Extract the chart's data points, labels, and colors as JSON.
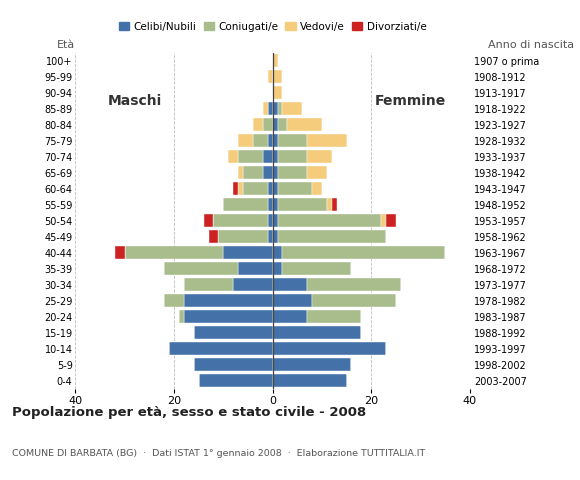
{
  "age_groups": [
    "0-4",
    "5-9",
    "10-14",
    "15-19",
    "20-24",
    "25-29",
    "30-34",
    "35-39",
    "40-44",
    "45-49",
    "50-54",
    "55-59",
    "60-64",
    "65-69",
    "70-74",
    "75-79",
    "80-84",
    "85-89",
    "90-94",
    "95-99",
    "100+"
  ],
  "birth_years": [
    "2003-2007",
    "1998-2002",
    "1993-1997",
    "1988-1992",
    "1983-1987",
    "1978-1982",
    "1973-1977",
    "1968-1972",
    "1963-1967",
    "1958-1962",
    "1953-1957",
    "1948-1952",
    "1943-1947",
    "1938-1942",
    "1933-1937",
    "1928-1932",
    "1923-1927",
    "1918-1922",
    "1913-1917",
    "1908-1912",
    "1907 o prima"
  ],
  "colors": {
    "celibi": "#4472a8",
    "coniugati": "#a8bc8c",
    "vedovi": "#f5cb7c",
    "divorziati": "#cc2222"
  },
  "males": {
    "celibi": [
      15,
      16,
      21,
      16,
      18,
      18,
      8,
      7,
      10,
      1,
      1,
      1,
      1,
      2,
      2,
      1,
      0,
      1,
      0,
      0,
      0
    ],
    "coniugati": [
      0,
      0,
      0,
      0,
      1,
      4,
      10,
      15,
      20,
      10,
      11,
      9,
      5,
      4,
      5,
      3,
      2,
      0,
      0,
      0,
      0
    ],
    "vedovi": [
      0,
      0,
      0,
      0,
      0,
      0,
      0,
      0,
      0,
      0,
      0,
      0,
      1,
      1,
      2,
      3,
      2,
      1,
      0,
      1,
      0
    ],
    "divorziati": [
      0,
      0,
      0,
      0,
      0,
      0,
      0,
      0,
      2,
      2,
      2,
      0,
      1,
      0,
      0,
      0,
      0,
      0,
      0,
      0,
      0
    ]
  },
  "females": {
    "celibi": [
      15,
      16,
      23,
      18,
      7,
      8,
      7,
      2,
      2,
      1,
      1,
      1,
      1,
      1,
      1,
      1,
      1,
      1,
      0,
      0,
      0
    ],
    "coniugati": [
      0,
      0,
      0,
      0,
      11,
      17,
      19,
      14,
      33,
      22,
      21,
      10,
      7,
      6,
      6,
      6,
      2,
      1,
      0,
      0,
      0
    ],
    "vedovi": [
      0,
      0,
      0,
      0,
      0,
      0,
      0,
      0,
      0,
      0,
      1,
      1,
      2,
      4,
      5,
      8,
      7,
      4,
      2,
      2,
      1
    ],
    "divorziati": [
      0,
      0,
      0,
      0,
      0,
      0,
      0,
      0,
      0,
      0,
      2,
      1,
      0,
      0,
      0,
      0,
      0,
      0,
      0,
      0,
      0
    ]
  },
  "title": "Popolazione per età, sesso e stato civile - 2008",
  "subtitle": "COMUNE DI BARBATA (BG)  ·  Dati ISTAT 1° gennaio 2008  ·  Elaborazione TUTTITALIA.IT",
  "legend_labels": [
    "Celibi/Nubili",
    "Coniugati/e",
    "Vedovi/e",
    "Divorziati/e"
  ],
  "xlim": 40,
  "ylabel_left": "Età",
  "ylabel_right": "Anno di nascita",
  "xlabel_left": "Maschi",
  "xlabel_right": "Femmine",
  "bg_color": "#ffffff",
  "grid_color": "#bbbbbb"
}
